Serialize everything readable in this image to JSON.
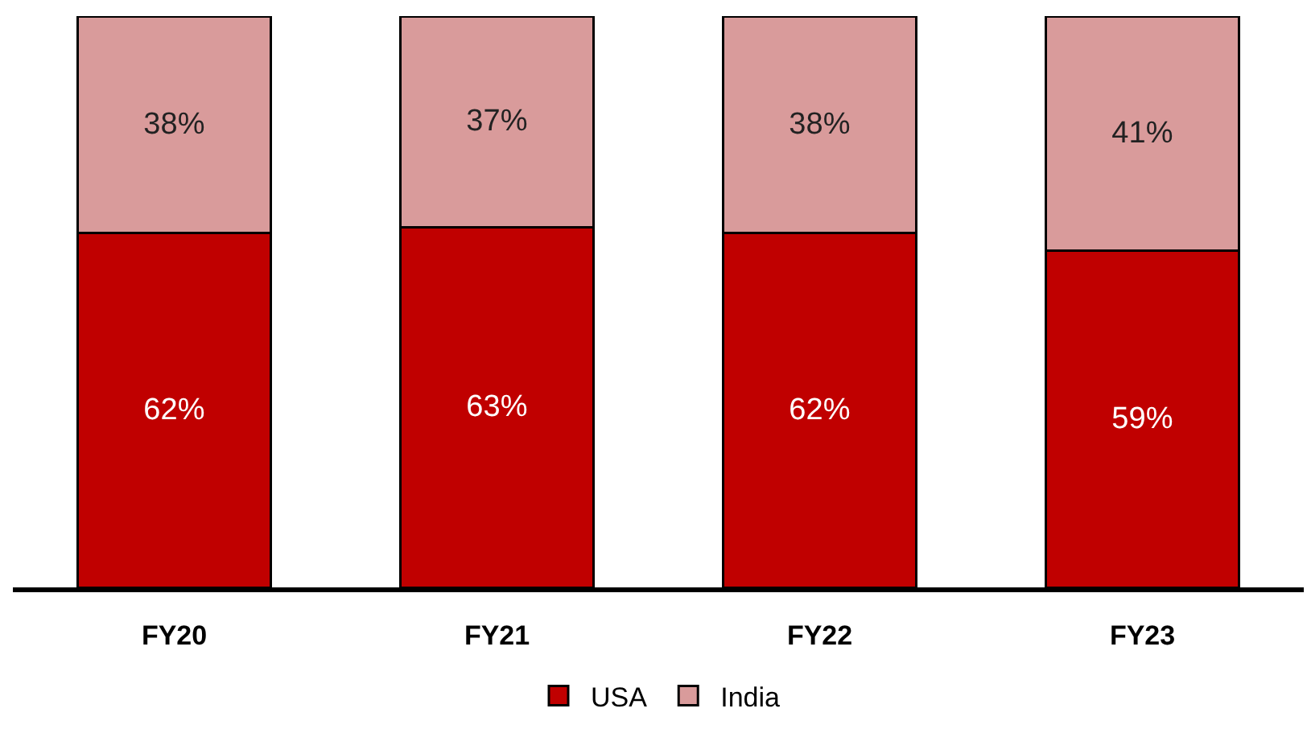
{
  "chart_data": {
    "type": "bar",
    "stacked": true,
    "categories": [
      "FY20",
      "FY21",
      "FY22",
      "FY23"
    ],
    "legend": "bottom",
    "series": [
      {
        "name": "USA",
        "color": "#c00000",
        "values": [
          62,
          63,
          62,
          59
        ],
        "value_labels": [
          "62%",
          "63%",
          "62%",
          "59%"
        ]
      },
      {
        "name": "India",
        "color": "#d99b9b",
        "values": [
          38,
          37,
          38,
          41
        ],
        "value_labels": [
          "38%",
          "37%",
          "38%",
          "41%"
        ]
      }
    ]
  }
}
